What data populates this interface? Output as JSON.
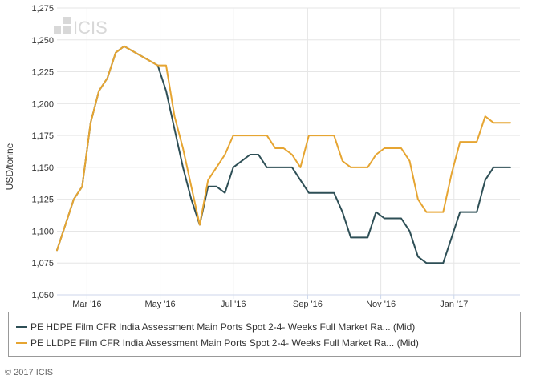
{
  "brand": {
    "watermark": "ICIS",
    "copyright": "© 2017 ICIS"
  },
  "chart_data": {
    "type": "line",
    "title": "",
    "xlabel": "",
    "ylabel": "USD/tonne",
    "ylim": [
      1050,
      1275
    ],
    "yticks": [
      1050,
      1075,
      1100,
      1125,
      1150,
      1175,
      1200,
      1225,
      1250,
      1275
    ],
    "ytick_labels": [
      "1,050",
      "1,075",
      "1,100",
      "1,125",
      "1,150",
      "1,175",
      "1,200",
      "1,225",
      "1,250",
      "1,275"
    ],
    "xlim": [
      "2016-02-05",
      "2017-02-25"
    ],
    "xticks": [
      "2016-03-01",
      "2016-05-01",
      "2016-07-01",
      "2016-09-01",
      "2016-11-01",
      "2017-01-01"
    ],
    "xtick_labels": [
      "Mar '16",
      "May '16",
      "Jul '16",
      "Sep '16",
      "Nov '16",
      "Jan '17"
    ],
    "grid": true,
    "legend_position": "bottom",
    "series": [
      {
        "name": "PE HDPE Film CFR India Assessment Main Ports Spot 2-4- Weeks Full Market Ra... (Mid)",
        "color": "#2e4f56",
        "x": [
          "2016-02-05",
          "2016-02-12",
          "2016-02-19",
          "2016-02-26",
          "2016-03-04",
          "2016-03-11",
          "2016-03-18",
          "2016-03-25",
          "2016-04-01",
          "2016-04-29",
          "2016-05-06",
          "2016-05-13",
          "2016-05-20",
          "2016-05-27",
          "2016-06-03",
          "2016-06-10",
          "2016-06-17",
          "2016-06-24",
          "2016-07-01",
          "2016-07-08",
          "2016-07-15",
          "2016-07-22",
          "2016-07-29",
          "2016-08-05",
          "2016-08-12",
          "2016-08-19",
          "2016-08-26",
          "2016-09-02",
          "2016-09-09",
          "2016-09-16",
          "2016-09-23",
          "2016-09-30",
          "2016-10-07",
          "2016-10-14",
          "2016-10-21",
          "2016-10-28",
          "2016-11-04",
          "2016-11-11",
          "2016-11-18",
          "2016-11-25",
          "2016-12-02",
          "2016-12-09",
          "2016-12-16",
          "2016-12-23",
          "2016-12-30",
          "2017-01-06",
          "2017-01-13",
          "2017-01-20",
          "2017-01-27",
          "2017-02-03",
          "2017-02-10",
          "2017-02-17"
        ],
        "y": [
          1085,
          1105,
          1125,
          1135,
          1185,
          1210,
          1220,
          1240,
          1245,
          1230,
          1210,
          1180,
          1150,
          1125,
          1105,
          1135,
          1135,
          1130,
          1150,
          1155,
          1160,
          1160,
          1150,
          1150,
          1150,
          1150,
          1140,
          1130,
          1130,
          1130,
          1130,
          1115,
          1095,
          1095,
          1095,
          1115,
          1110,
          1110,
          1110,
          1100,
          1080,
          1075,
          1075,
          1075,
          1095,
          1115,
          1115,
          1115,
          1140,
          1150,
          1150,
          1150
        ]
      },
      {
        "name": "PE LLDPE Film CFR India Assessment Main Ports Spot 2-4- Weeks Full Market Ra... (Mid)",
        "color": "#e6a532",
        "x": [
          "2016-02-05",
          "2016-02-12",
          "2016-02-19",
          "2016-02-26",
          "2016-03-04",
          "2016-03-11",
          "2016-03-18",
          "2016-03-25",
          "2016-04-01",
          "2016-04-29",
          "2016-05-06",
          "2016-05-13",
          "2016-05-20",
          "2016-05-27",
          "2016-06-03",
          "2016-06-10",
          "2016-06-17",
          "2016-06-24",
          "2016-07-01",
          "2016-07-08",
          "2016-07-15",
          "2016-07-22",
          "2016-07-29",
          "2016-08-05",
          "2016-08-12",
          "2016-08-19",
          "2016-08-26",
          "2016-09-02",
          "2016-09-09",
          "2016-09-16",
          "2016-09-23",
          "2016-09-30",
          "2016-10-07",
          "2016-10-14",
          "2016-10-21",
          "2016-10-28",
          "2016-11-04",
          "2016-11-11",
          "2016-11-18",
          "2016-11-25",
          "2016-12-02",
          "2016-12-09",
          "2016-12-16",
          "2016-12-23",
          "2016-12-30",
          "2017-01-06",
          "2017-01-13",
          "2017-01-20",
          "2017-01-27",
          "2017-02-03",
          "2017-02-10",
          "2017-02-17"
        ],
        "y": [
          1085,
          1105,
          1125,
          1135,
          1185,
          1210,
          1220,
          1240,
          1245,
          1230,
          1230,
          1190,
          1165,
          1135,
          1105,
          1140,
          1150,
          1160,
          1175,
          1175,
          1175,
          1175,
          1175,
          1165,
          1165,
          1160,
          1150,
          1175,
          1175,
          1175,
          1175,
          1155,
          1150,
          1150,
          1150,
          1160,
          1165,
          1165,
          1165,
          1155,
          1125,
          1115,
          1115,
          1115,
          1145,
          1170,
          1170,
          1170,
          1190,
          1185,
          1185,
          1185
        ]
      }
    ]
  }
}
